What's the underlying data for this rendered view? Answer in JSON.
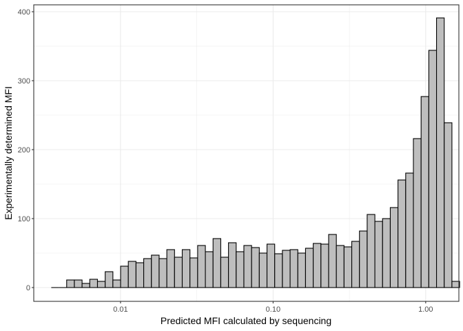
{
  "chart_data": {
    "type": "bar",
    "xlabel": "Predicted MFI calculated by sequencing",
    "ylabel": "Experimentally determined MFI",
    "x_scale": "log10",
    "xlim": [
      0.0027,
      1.65
    ],
    "ylim": [
      -20,
      410
    ],
    "x_ticks": [
      {
        "value": 0.01,
        "label": "0.01"
      },
      {
        "value": 0.1,
        "label": "0.10"
      },
      {
        "value": 1.0,
        "label": "1.00"
      }
    ],
    "y_ticks": [
      {
        "value": 0,
        "label": "0"
      },
      {
        "value": 100,
        "label": "100"
      },
      {
        "value": 200,
        "label": "200"
      },
      {
        "value": 300,
        "label": "300"
      },
      {
        "value": 400,
        "label": "400"
      }
    ],
    "grid": true,
    "bin_log10_start": -2.454,
    "bin_log10_width": 0.0505,
    "values": [
      0,
      0,
      11,
      11,
      6,
      12,
      9,
      23,
      11,
      31,
      38,
      36,
      42,
      47,
      42,
      55,
      44,
      55,
      43,
      61,
      52,
      71,
      44,
      65,
      52,
      61,
      58,
      50,
      63,
      49,
      54,
      55,
      50,
      57,
      64,
      63,
      77,
      61,
      59,
      67,
      82,
      106,
      96,
      100,
      116,
      156,
      166,
      216,
      277,
      344,
      391,
      239,
      9
    ],
    "colors": {
      "bar_fill": "#bebebe",
      "bar_stroke": "#000000",
      "grid": "#ebebeb",
      "panel_border": "#333333",
      "background": "#ffffff"
    }
  }
}
